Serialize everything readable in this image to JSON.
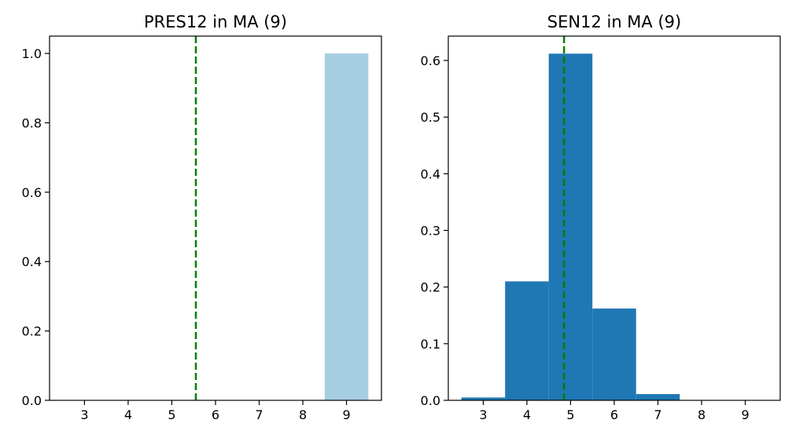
{
  "chart_data": [
    {
      "type": "bar",
      "title": "PRES12 in MA (9)",
      "xlabel": "",
      "ylabel": "",
      "categories": [
        "3",
        "4",
        "5",
        "6",
        "7",
        "8",
        "9"
      ],
      "values": [
        0,
        0,
        0,
        0,
        0,
        0,
        1.0
      ],
      "xlim": [
        2.2,
        9.8
      ],
      "ylim": [
        0,
        1.05
      ],
      "xticks": [
        "3",
        "4",
        "5",
        "6",
        "7",
        "8",
        "9"
      ],
      "yticks": [
        "0.0",
        "0.2",
        "0.4",
        "0.6",
        "0.8",
        "1.0"
      ],
      "ytick_values": [
        0.0,
        0.2,
        0.4,
        0.6,
        0.8,
        1.0
      ],
      "vline": 5.55,
      "bar_color": "#a6cee3",
      "vline_color": "#008000",
      "grid": false
    },
    {
      "type": "bar",
      "title": "SEN12 in MA (9)",
      "xlabel": "",
      "ylabel": "",
      "categories": [
        "3",
        "4",
        "5",
        "6",
        "7",
        "8",
        "9"
      ],
      "values": [
        0.005,
        0.21,
        0.612,
        0.162,
        0.011,
        0,
        0
      ],
      "xlim": [
        2.2,
        9.8
      ],
      "ylim": [
        0,
        0.643
      ],
      "xticks": [
        "3",
        "4",
        "5",
        "6",
        "7",
        "8",
        "9"
      ],
      "yticks": [
        "0.0",
        "0.1",
        "0.2",
        "0.3",
        "0.4",
        "0.5",
        "0.6"
      ],
      "ytick_values": [
        0.0,
        0.1,
        0.2,
        0.3,
        0.4,
        0.5,
        0.6
      ],
      "vline": 4.85,
      "bar_color": "#1f77b4",
      "vline_color": "#008000",
      "grid": false
    }
  ]
}
